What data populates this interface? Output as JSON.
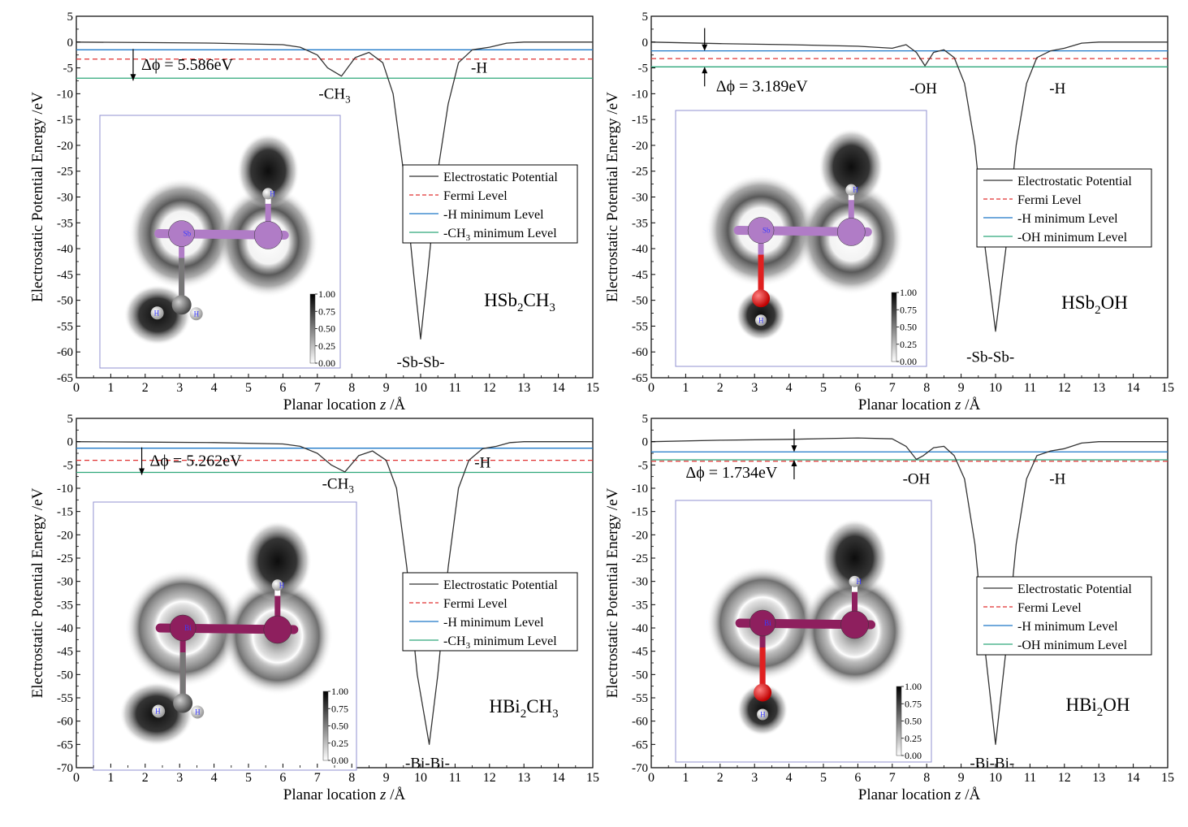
{
  "chart_data": [
    {
      "type": "line",
      "panel": "top-left",
      "compound": "HSb2CH3",
      "compound_base": "HSb",
      "compound_sub": "2",
      "compound_rest": "CH",
      "compound_sub2": "3",
      "compound_rest2": "",
      "xlabel_pre": "Planar location ",
      "xlabel_var": "z",
      "xlabel_post": " /Å",
      "ylabel": "Electrostatic Potential Energy /eV",
      "xlim": [
        0,
        15
      ],
      "ylim": [
        -65,
        5
      ],
      "xticks": [
        0,
        1,
        2,
        3,
        4,
        5,
        6,
        7,
        8,
        9,
        10,
        11,
        12,
        13,
        14,
        15
      ],
      "yticks": [
        5,
        0,
        -5,
        -10,
        -15,
        -20,
        -25,
        -30,
        -35,
        -40,
        -45,
        -50,
        -55,
        -60,
        -65
      ],
      "series": [
        {
          "name": "Electrostatic Potential",
          "color": "#000000",
          "x": [
            0,
            2,
            4,
            6,
            6.5,
            7,
            7.3,
            7.7,
            8.1,
            8.5,
            8.9,
            9.2,
            9.5,
            9.8,
            10,
            10.2,
            10.5,
            10.8,
            11.1,
            11.5,
            12,
            12.5,
            13,
            15
          ],
          "y": [
            0,
            -0.1,
            -0.2,
            -0.5,
            -1,
            -2.5,
            -5,
            -6.6,
            -3,
            -2,
            -4,
            -10,
            -25,
            -45,
            -57.5,
            -45,
            -25,
            -12,
            -4,
            -1.5,
            -1,
            -0.2,
            0,
            0
          ]
        },
        {
          "name": "Fermi Level",
          "color": "#e03030",
          "dash": true,
          "y": -3.3
        },
        {
          "name": "-H minimum Level",
          "color": "#1e78c8",
          "y": -1.5
        },
        {
          "name": "-CH3 minimum Level",
          "color": "#2ea87a",
          "y": -7
        }
      ],
      "legend": {
        "placement": "center-right",
        "entries": [
          {
            "base": "Electrostatic Potential",
            "sub": "",
            "rest": ""
          },
          {
            "base": "Fermi Level",
            "sub": "",
            "rest": ""
          },
          {
            "base": "-H minimum Level",
            "sub": "",
            "rest": ""
          },
          {
            "base": "-CH",
            "sub": "3",
            "rest": " minimum Level"
          }
        ]
      },
      "delta": {
        "label": "Δϕ = 5.586eV",
        "value": 5.586,
        "x": 1.65,
        "from": -1.5,
        "to": -7
      },
      "annotations": [
        {
          "base": "-CH",
          "sub": "3",
          "x": 7.5,
          "y": -10
        },
        {
          "base": "-H",
          "sub": "",
          "x": 11.7,
          "y": -5
        },
        {
          "base": "-Sb-Sb-",
          "sub": "",
          "x": 10,
          "y": -62
        }
      ],
      "inset": {
        "colorbar_ticks": [
          "1.00",
          "0.75",
          "0.50",
          "0.25",
          "0.00"
        ],
        "atom_color": "#b07cc6",
        "atom_label": "Sb",
        "group": "CH3",
        "h_label": "H"
      }
    },
    {
      "type": "line",
      "panel": "top-right",
      "compound": "HSb2OH",
      "compound_base": "HSb",
      "compound_sub": "2",
      "compound_rest": "OH",
      "compound_sub2": "",
      "compound_rest2": "",
      "xlabel_pre": "Planar location ",
      "xlabel_var": "z",
      "xlabel_post": " /Å",
      "ylabel": "Electrostatic Potential Energy /eV",
      "xlim": [
        0,
        15
      ],
      "ylim": [
        -65,
        5
      ],
      "xticks": [
        0,
        1,
        2,
        3,
        4,
        5,
        6,
        7,
        8,
        9,
        10,
        11,
        12,
        13,
        14,
        15
      ],
      "yticks": [
        5,
        0,
        -5,
        -10,
        -15,
        -20,
        -25,
        -30,
        -35,
        -40,
        -45,
        -50,
        -55,
        -60,
        -65
      ],
      "series": [
        {
          "name": "Electrostatic Potential",
          "color": "#000000",
          "x": [
            0,
            2,
            4,
            6,
            7,
            7.4,
            7.7,
            7.95,
            8.2,
            8.5,
            8.8,
            9.1,
            9.4,
            9.7,
            10,
            10.3,
            10.6,
            10.9,
            11.2,
            11.6,
            12,
            12.5,
            13,
            15
          ],
          "y": [
            0,
            -0.3,
            -0.5,
            -0.8,
            -1.2,
            -0.5,
            -2,
            -4.6,
            -2,
            -1.5,
            -3,
            -8,
            -20,
            -40,
            -56,
            -40,
            -20,
            -8,
            -3,
            -1.7,
            -1.2,
            -0.2,
            0,
            0
          ]
        },
        {
          "name": "Fermi Level",
          "color": "#e03030",
          "dash": true,
          "y": -3.2
        },
        {
          "name": "-H minimum Level",
          "color": "#1e78c8",
          "y": -1.7
        },
        {
          "name": "-OH minimum Level",
          "color": "#2ea87a",
          "y": -4.8
        }
      ],
      "legend": {
        "placement": "center-right",
        "entries": [
          {
            "base": "Electrostatic Potential",
            "sub": "",
            "rest": ""
          },
          {
            "base": "Fermi Level",
            "sub": "",
            "rest": ""
          },
          {
            "base": "-H minimum Level",
            "sub": "",
            "rest": ""
          },
          {
            "base": "-OH minimum Level",
            "sub": "",
            "rest": ""
          }
        ]
      },
      "delta": {
        "label": "Δϕ = 3.189eV",
        "value": 3.189,
        "x": 1.55,
        "from": -1.7,
        "to": -4.8
      },
      "annotations": [
        {
          "base": "-OH",
          "sub": "",
          "x": 7.9,
          "y": -9
        },
        {
          "base": "-H",
          "sub": "",
          "x": 11.8,
          "y": -9
        },
        {
          "base": "-Sb-Sb-",
          "sub": "",
          "x": 9.85,
          "y": -61
        }
      ],
      "inset": {
        "colorbar_ticks": [
          "1.00",
          "0.75",
          "0.50",
          "0.25",
          "0.00"
        ],
        "atom_color": "#b07cc6",
        "atom_label": "Sb",
        "group": "OH",
        "h_label": "H"
      }
    },
    {
      "type": "line",
      "panel": "bottom-left",
      "compound": "HBi2CH3",
      "compound_base": "HBi",
      "compound_sub": "2",
      "compound_rest": "CH",
      "compound_sub2": "3",
      "compound_rest2": "",
      "xlabel_pre": "Planar location ",
      "xlabel_var": "z",
      "xlabel_post": " /Å",
      "ylabel": "Electrostatic Potential Energy /eV",
      "xlim": [
        0,
        15
      ],
      "ylim": [
        -70,
        5
      ],
      "xticks": [
        0,
        1,
        2,
        3,
        4,
        5,
        6,
        7,
        8,
        9,
        10,
        11,
        12,
        13,
        14,
        15
      ],
      "yticks": [
        5,
        0,
        -5,
        -10,
        -15,
        -20,
        -25,
        -30,
        -35,
        -40,
        -45,
        -50,
        -55,
        -60,
        -65,
        -70
      ],
      "series": [
        {
          "name": "Electrostatic Potential",
          "color": "#000000",
          "x": [
            0,
            2,
            4,
            6,
            6.5,
            7,
            7.4,
            7.8,
            8.2,
            8.6,
            9,
            9.3,
            9.6,
            9.9,
            10.25,
            10.5,
            10.8,
            11.1,
            11.4,
            11.8,
            12.2,
            12.6,
            13,
            15
          ],
          "y": [
            0,
            -0.1,
            -0.2,
            -0.5,
            -1,
            -2.5,
            -5,
            -6.5,
            -3,
            -2,
            -4,
            -10,
            -27,
            -50,
            -65,
            -50,
            -27,
            -10,
            -4,
            -1.5,
            -1,
            -0.2,
            0,
            0
          ]
        },
        {
          "name": "Fermi Level",
          "color": "#e03030",
          "dash": true,
          "y": -4
        },
        {
          "name": "-H minimum Level",
          "color": "#1e78c8",
          "y": -1.4
        },
        {
          "name": "-CH3 minimum Level",
          "color": "#2ea87a",
          "y": -6.6
        }
      ],
      "legend": {
        "placement": "center-right",
        "entries": [
          {
            "base": "Electrostatic Potential",
            "sub": "",
            "rest": ""
          },
          {
            "base": "Fermi Level",
            "sub": "",
            "rest": ""
          },
          {
            "base": "-H minimum Level",
            "sub": "",
            "rest": ""
          },
          {
            "base": "-CH",
            "sub": "3",
            "rest": " minimum Level"
          }
        ]
      },
      "delta": {
        "label": "Δϕ = 5.262eV",
        "value": 5.262,
        "x": 1.9,
        "from": -1.4,
        "to": -6.6
      },
      "annotations": [
        {
          "base": "-CH",
          "sub": "3",
          "x": 7.6,
          "y": -9
        },
        {
          "base": "-H",
          "sub": "",
          "x": 11.8,
          "y": -4.5
        },
        {
          "base": "-Bi-Bi-",
          "sub": "",
          "x": 10.2,
          "y": -69
        }
      ],
      "inset": {
        "colorbar_ticks": [
          "1.00",
          "0.75",
          "0.50",
          "0.25",
          "0.00"
        ],
        "atom_color": "#8e1f5e",
        "atom_label": "Bi",
        "group": "CH3",
        "h_label": "H"
      }
    },
    {
      "type": "line",
      "panel": "bottom-right",
      "compound": "HBi2OH",
      "compound_base": "HBi",
      "compound_sub": "2",
      "compound_rest": "OH",
      "compound_sub2": "",
      "compound_rest2": "",
      "xlabel_pre": "Planar location ",
      "xlabel_var": "z",
      "xlabel_post": " /Å",
      "ylabel": "Electrostatic Potential Energy /eV",
      "xlim": [
        0,
        15
      ],
      "ylim": [
        -70,
        5
      ],
      "xticks": [
        0,
        1,
        2,
        3,
        4,
        5,
        6,
        7,
        8,
        9,
        10,
        11,
        12,
        13,
        14,
        15
      ],
      "yticks": [
        5,
        0,
        -5,
        -10,
        -15,
        -20,
        -25,
        -30,
        -35,
        -40,
        -45,
        -50,
        -55,
        -60,
        -65,
        -70
      ],
      "series": [
        {
          "name": "Electrostatic Potential",
          "color": "#000000",
          "x": [
            0,
            2,
            4,
            6,
            7,
            7.4,
            7.7,
            7.9,
            8.2,
            8.5,
            8.8,
            9.1,
            9.4,
            9.7,
            10,
            10.3,
            10.6,
            10.9,
            11.2,
            11.6,
            12,
            12.5,
            13,
            15
          ],
          "y": [
            0,
            0.3,
            0.5,
            0.8,
            0.6,
            -1,
            -3.8,
            -3,
            -1.3,
            -1,
            -3,
            -8,
            -22,
            -45,
            -65,
            -45,
            -22,
            -8,
            -3,
            -2,
            -1.5,
            -0.3,
            0,
            0
          ]
        },
        {
          "name": "Fermi Level",
          "color": "#e03030",
          "dash": true,
          "y": -4.2
        },
        {
          "name": "-H minimum Level",
          "color": "#1e78c8",
          "y": -2.2
        },
        {
          "name": "-OH minimum Level",
          "color": "#2ea87a",
          "y": -3.9
        }
      ],
      "legend": {
        "placement": "center-right",
        "entries": [
          {
            "base": "Electrostatic Potential",
            "sub": "",
            "rest": ""
          },
          {
            "base": "Fermi Level",
            "sub": "",
            "rest": ""
          },
          {
            "base": "-H minimum Level",
            "sub": "",
            "rest": ""
          },
          {
            "base": "-OH minimum Level",
            "sub": "",
            "rest": ""
          }
        ]
      },
      "delta": {
        "label": "Δϕ = 1.734eV",
        "value": 1.734,
        "x": 4.15,
        "from": -2.2,
        "to": -3.9
      },
      "annotations": [
        {
          "base": "-OH",
          "sub": "",
          "x": 7.7,
          "y": -8
        },
        {
          "base": "-H",
          "sub": "",
          "x": 11.8,
          "y": -8
        },
        {
          "base": "-Bi-Bi-",
          "sub": "",
          "x": 9.9,
          "y": -69
        }
      ],
      "inset": {
        "colorbar_ticks": [
          "1.00",
          "0.75",
          "0.50",
          "0.25",
          "0.00"
        ],
        "atom_color": "#8e1f5e",
        "atom_label": "Bi",
        "group": "OH",
        "h_label": "H"
      }
    }
  ]
}
